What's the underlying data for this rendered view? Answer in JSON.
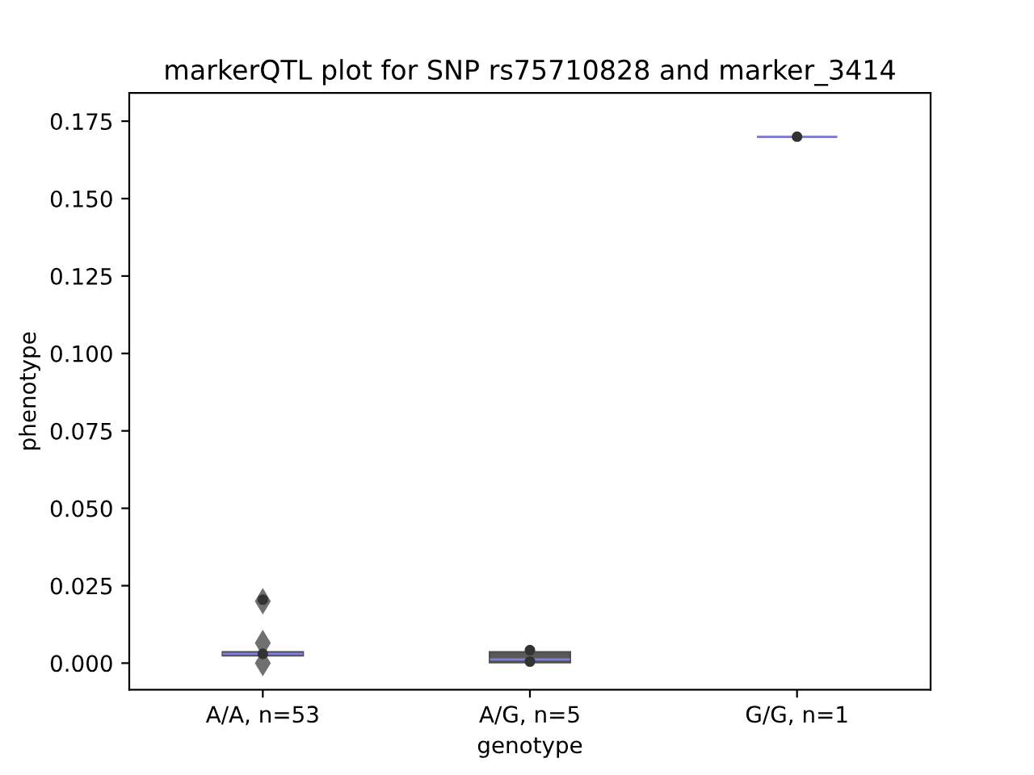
{
  "chart_data": {
    "type": "box",
    "title": "markerQTL plot for SNP rs75710828 and marker_3414",
    "xlabel": "genotype",
    "ylabel": "phenotype",
    "categories": [
      "A/A, n=53",
      "A/G, n=5",
      "G/G, n=1"
    ],
    "boxes": [
      {
        "low": 0.0005,
        "q1": 0.0025,
        "median": 0.003,
        "q3": 0.0035,
        "high": 0.006,
        "outliers": [
          0.02,
          0.0065,
          0.0
        ]
      },
      {
        "low": 0.0003,
        "q1": 0.0003,
        "median": 0.0012,
        "q3": 0.0035,
        "high": 0.0035
      },
      {
        "low": 0.17,
        "q1": 0.17,
        "median": 0.17,
        "q3": 0.17,
        "high": 0.17
      }
    ],
    "colors": [
      "#4a4a4a",
      "#5a5a5a",
      "#5a5a5a"
    ],
    "ylim": [
      -0.0086,
      0.1841
    ],
    "yticks": [
      {
        "value": 0,
        "label": "0.000"
      },
      {
        "value": 0.025,
        "label": "0.025"
      },
      {
        "value": 0.05,
        "label": "0.050"
      },
      {
        "value": 0.075,
        "label": "0.075"
      },
      {
        "value": 0.1,
        "label": "0.100"
      },
      {
        "value": 0.125,
        "label": "0.125"
      },
      {
        "value": 0.15,
        "label": "0.150"
      },
      {
        "value": 0.175,
        "label": "0.175"
      }
    ],
    "series": [
      {
        "type": "scatter",
        "color": "#333333",
        "x": [
          "A/A, n=53",
          "A/A, n=53",
          "A/G, n=5",
          "A/G, n=5",
          "G/G, n=1"
        ],
        "values": [
          0.0205,
          0.003,
          0.0042,
          0.0005,
          0.17
        ]
      }
    ],
    "grid": false,
    "marker": "circle"
  }
}
